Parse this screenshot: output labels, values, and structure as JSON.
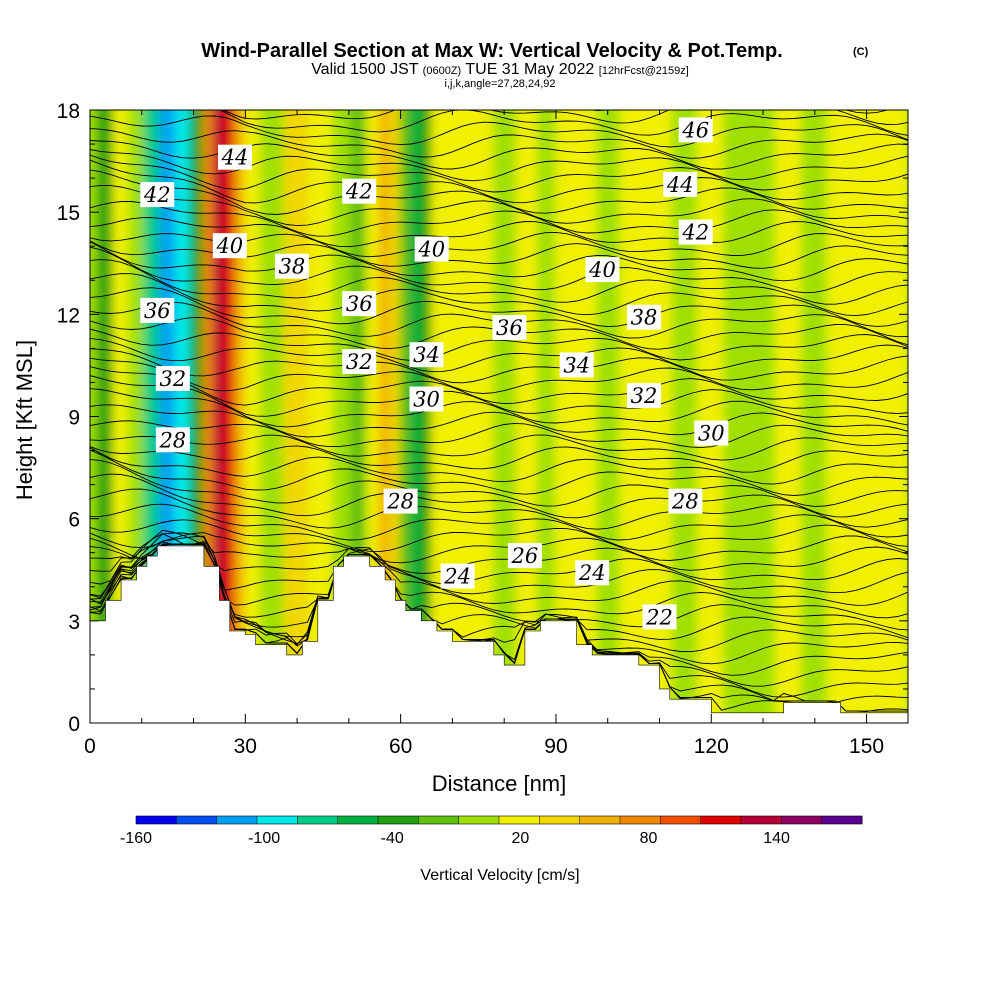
{
  "title": {
    "main": "Wind-Parallel Section at Max W: Vertical Velocity & Pot.Temp.",
    "copyright": "(C)",
    "valid_prefix": "Valid 1500 JST",
    "valid_utc": "(0600Z)",
    "valid_date": "TUE 31 May 2022",
    "forecast": "[12hrFcst@2159z]",
    "indices": "i,j,k,angle=27,28,24,92"
  },
  "chart_data": {
    "type": "heatmap",
    "xlabel": "Distance [nm]",
    "ylabel": "Height [Kft MSL]",
    "xlim": [
      0,
      158
    ],
    "ylim": [
      0,
      18
    ],
    "x_ticks": [
      "0",
      "30",
      "60",
      "90",
      "120",
      "150"
    ],
    "y_ticks": [
      "0",
      "3",
      "6",
      "9",
      "12",
      "15",
      "18"
    ],
    "x_tick_values": [
      0,
      30,
      60,
      90,
      120,
      150
    ],
    "y_tick_values": [
      0,
      3,
      6,
      9,
      12,
      15,
      18
    ],
    "background_field": "Vertical Velocity [cm/s]",
    "vertical_velocity_columns": [
      {
        "x": 0,
        "w": 0
      },
      {
        "x": 3,
        "w": -40
      },
      {
        "x": 6,
        "w": 10
      },
      {
        "x": 9,
        "w": 5
      },
      {
        "x": 12,
        "w": -80
      },
      {
        "x": 15,
        "w": -110
      },
      {
        "x": 18,
        "w": -90
      },
      {
        "x": 21,
        "w": -30
      },
      {
        "x": 23,
        "w": 80
      },
      {
        "x": 25,
        "w": 130
      },
      {
        "x": 27,
        "w": 115
      },
      {
        "x": 29,
        "w": 55
      },
      {
        "x": 31,
        "w": 10
      },
      {
        "x": 35,
        "w": 5
      },
      {
        "x": 40,
        "w": 30
      },
      {
        "x": 45,
        "w": 15
      },
      {
        "x": 49,
        "w": 0
      },
      {
        "x": 52,
        "w": -20
      },
      {
        "x": 55,
        "w": 15
      },
      {
        "x": 57,
        "w": 55
      },
      {
        "x": 59,
        "w": 40
      },
      {
        "x": 61,
        "w": -25
      },
      {
        "x": 63,
        "w": -50
      },
      {
        "x": 65,
        "w": -30
      },
      {
        "x": 67,
        "w": 10
      },
      {
        "x": 72,
        "w": 20
      },
      {
        "x": 76,
        "w": 25
      },
      {
        "x": 80,
        "w": 0
      },
      {
        "x": 85,
        "w": 15
      },
      {
        "x": 88,
        "w": -5
      },
      {
        "x": 92,
        "w": 20
      },
      {
        "x": 96,
        "w": 15
      },
      {
        "x": 100,
        "w": 5
      },
      {
        "x": 105,
        "w": 20
      },
      {
        "x": 110,
        "w": 25
      },
      {
        "x": 115,
        "w": 5
      },
      {
        "x": 120,
        "w": 15
      },
      {
        "x": 125,
        "w": 5
      },
      {
        "x": 130,
        "w": 0
      },
      {
        "x": 135,
        "w": 10
      },
      {
        "x": 140,
        "w": 5
      },
      {
        "x": 145,
        "w": 15
      },
      {
        "x": 150,
        "w": 20
      },
      {
        "x": 155,
        "w": 10
      },
      {
        "x": 158,
        "w": 15
      }
    ],
    "terrain": [
      [
        0,
        3.0
      ],
      [
        3,
        3.0
      ],
      [
        3,
        3.6
      ],
      [
        6,
        3.6
      ],
      [
        6,
        4.2
      ],
      [
        9,
        4.2
      ],
      [
        9,
        4.6
      ],
      [
        11,
        4.6
      ],
      [
        11,
        4.9
      ],
      [
        13,
        4.9
      ],
      [
        13,
        5.2
      ],
      [
        22,
        5.2
      ],
      [
        22,
        4.6
      ],
      [
        25,
        4.6
      ],
      [
        25,
        3.6
      ],
      [
        27,
        3.6
      ],
      [
        27,
        2.7
      ],
      [
        30,
        2.7
      ],
      [
        30,
        2.6
      ],
      [
        32,
        2.6
      ],
      [
        32,
        2.3
      ],
      [
        38,
        2.3
      ],
      [
        38,
        2.0
      ],
      [
        41,
        2.0
      ],
      [
        41,
        2.4
      ],
      [
        44,
        2.4
      ],
      [
        44,
        3.6
      ],
      [
        47,
        3.6
      ],
      [
        47,
        4.6
      ],
      [
        49,
        4.6
      ],
      [
        49,
        4.9
      ],
      [
        54,
        4.9
      ],
      [
        54,
        4.6
      ],
      [
        57,
        4.6
      ],
      [
        57,
        4.2
      ],
      [
        59,
        4.2
      ],
      [
        59,
        3.6
      ],
      [
        61,
        3.6
      ],
      [
        61,
        3.3
      ],
      [
        64,
        3.3
      ],
      [
        64,
        3.0
      ],
      [
        67,
        3.0
      ],
      [
        67,
        2.7
      ],
      [
        70,
        2.7
      ],
      [
        70,
        2.4
      ],
      [
        78,
        2.4
      ],
      [
        78,
        2.0
      ],
      [
        80,
        2.0
      ],
      [
        80,
        1.7
      ],
      [
        84,
        1.7
      ],
      [
        84,
        2.7
      ],
      [
        87,
        2.7
      ],
      [
        87,
        3.0
      ],
      [
        94,
        3.0
      ],
      [
        94,
        2.3
      ],
      [
        97,
        2.3
      ],
      [
        97,
        2.0
      ],
      [
        106,
        2.0
      ],
      [
        106,
        1.7
      ],
      [
        110,
        1.7
      ],
      [
        110,
        1.0
      ],
      [
        112,
        1.0
      ],
      [
        112,
        0.7
      ],
      [
        120,
        0.7
      ],
      [
        120,
        0.3
      ],
      [
        134,
        0.3
      ],
      [
        134,
        0.6
      ],
      [
        145,
        0.6
      ],
      [
        145,
        0.3
      ],
      [
        158,
        0.3
      ],
      [
        158,
        0
      ],
      [
        0,
        0
      ]
    ],
    "contour_field": "Potential Temperature",
    "contour_labels": [
      {
        "label": "46",
        "x": 117,
        "y": 17.4
      },
      {
        "label": "44",
        "x": 28,
        "y": 16.6
      },
      {
        "label": "44",
        "x": 114,
        "y": 15.8
      },
      {
        "label": "42",
        "x": 13,
        "y": 15.5
      },
      {
        "label": "42",
        "x": 52,
        "y": 15.6
      },
      {
        "label": "42",
        "x": 117,
        "y": 14.4
      },
      {
        "label": "40",
        "x": 27,
        "y": 14.0
      },
      {
        "label": "40",
        "x": 66,
        "y": 13.9
      },
      {
        "label": "40",
        "x": 99,
        "y": 13.3
      },
      {
        "label": "38",
        "x": 39,
        "y": 13.4
      },
      {
        "label": "38",
        "x": 107,
        "y": 11.9
      },
      {
        "label": "36",
        "x": 13,
        "y": 12.1
      },
      {
        "label": "36",
        "x": 52,
        "y": 12.3
      },
      {
        "label": "36",
        "x": 81,
        "y": 11.6
      },
      {
        "label": "34",
        "x": 65,
        "y": 10.8
      },
      {
        "label": "34",
        "x": 94,
        "y": 10.5
      },
      {
        "label": "32",
        "x": 16,
        "y": 10.1
      },
      {
        "label": "32",
        "x": 52,
        "y": 10.6
      },
      {
        "label": "32",
        "x": 107,
        "y": 9.6
      },
      {
        "label": "30",
        "x": 65,
        "y": 9.5
      },
      {
        "label": "30",
        "x": 120,
        "y": 8.5
      },
      {
        "label": "28",
        "x": 16,
        "y": 8.3
      },
      {
        "label": "28",
        "x": 60,
        "y": 6.5
      },
      {
        "label": "28",
        "x": 115,
        "y": 6.5
      },
      {
        "label": "26",
        "x": 84,
        "y": 4.9
      },
      {
        "label": "24",
        "x": 71,
        "y": 4.3
      },
      {
        "label": "24",
        "x": 97,
        "y": 4.4
      },
      {
        "label": "22",
        "x": 110,
        "y": 3.1
      }
    ],
    "colorbar": {
      "label": "Vertical Velocity [cm/s]",
      "tick_labels": [
        "-160",
        "-100",
        "-40",
        "20",
        "80",
        "140"
      ],
      "tick_values": [
        -160,
        -100,
        -40,
        20,
        80,
        140
      ],
      "range": [
        -160,
        180
      ],
      "colors": [
        "#0000f0",
        "#0050f0",
        "#00a0f0",
        "#00e8e8",
        "#00cc88",
        "#00b040",
        "#20a010",
        "#60c010",
        "#a0e000",
        "#f0f000",
        "#f0d800",
        "#f0b000",
        "#f08800",
        "#f05000",
        "#e00000",
        "#b80038",
        "#8c0060",
        "#5a0090"
      ]
    }
  }
}
